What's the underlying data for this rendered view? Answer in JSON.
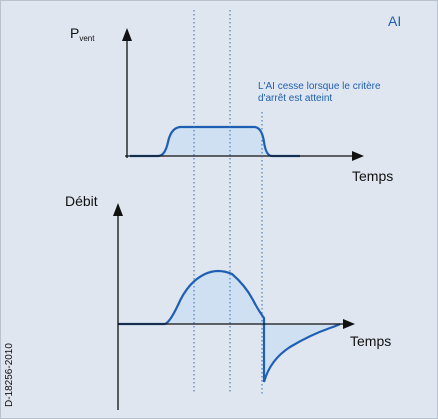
{
  "mode_label": "AI",
  "top_chart": {
    "y_label_main": "P",
    "y_label_sub": "vent",
    "x_label": "Temps",
    "annotation_line1": "L'AI cesse lorsque le critère",
    "annotation_line2": "d'arrêt est atteint"
  },
  "bottom_chart": {
    "y_label": "Débit",
    "x_label": "Temps"
  },
  "figure_id": "D-18256-2010",
  "colors": {
    "background": "#dfe6ef",
    "curve": "#1f5fb3",
    "fill": "#cfe0f3",
    "axis": "#111111",
    "guide": "#2b6fbf"
  }
}
